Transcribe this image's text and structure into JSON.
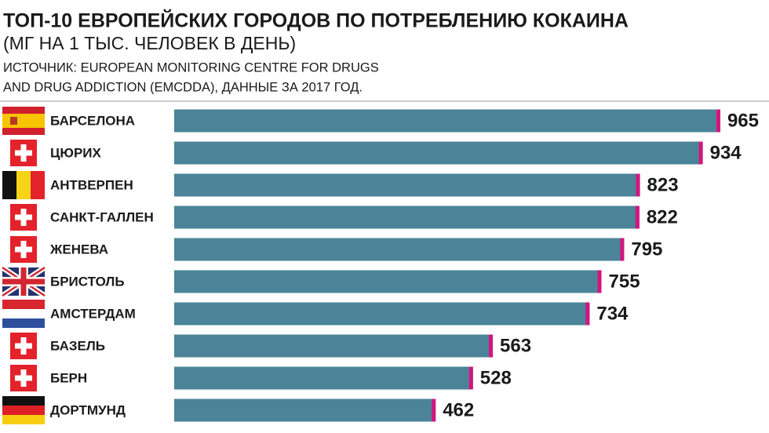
{
  "chart_data": {
    "type": "bar",
    "orientation": "horizontal",
    "title": "ТОП-10 ЕВРОПЕЙСКИХ ГОРОДОВ ПО ПОТРЕБЛЕНИЮ КОКАИНА",
    "subtitle": "(МГ НА 1 ТЫС. ЧЕЛОВЕК В ДЕНЬ)",
    "source": [
      "ИСТОЧНИК: EUROPEAN MONITORING CENTRE FOR DRUGS",
      "AND DRUG ADDICTION (EMCDDA), ДАННЫЕ ЗА 2017 ГОД."
    ],
    "categories": [
      "БАРСЕЛОНА",
      "ЦЮРИХ",
      "АНТВЕРПЕН",
      "САНКТ-ГАЛЛЕН",
      "ЖЕНЕВА",
      "БРИСТОЛЬ",
      "АМСТЕРДАМ",
      "БАЗЕЛЬ",
      "БЕРН",
      "ДОРТМУНД"
    ],
    "values": [
      965,
      934,
      823,
      822,
      795,
      755,
      734,
      563,
      528,
      462
    ],
    "color": "#4b8499",
    "cap_color": "#d4157f"
  }
}
